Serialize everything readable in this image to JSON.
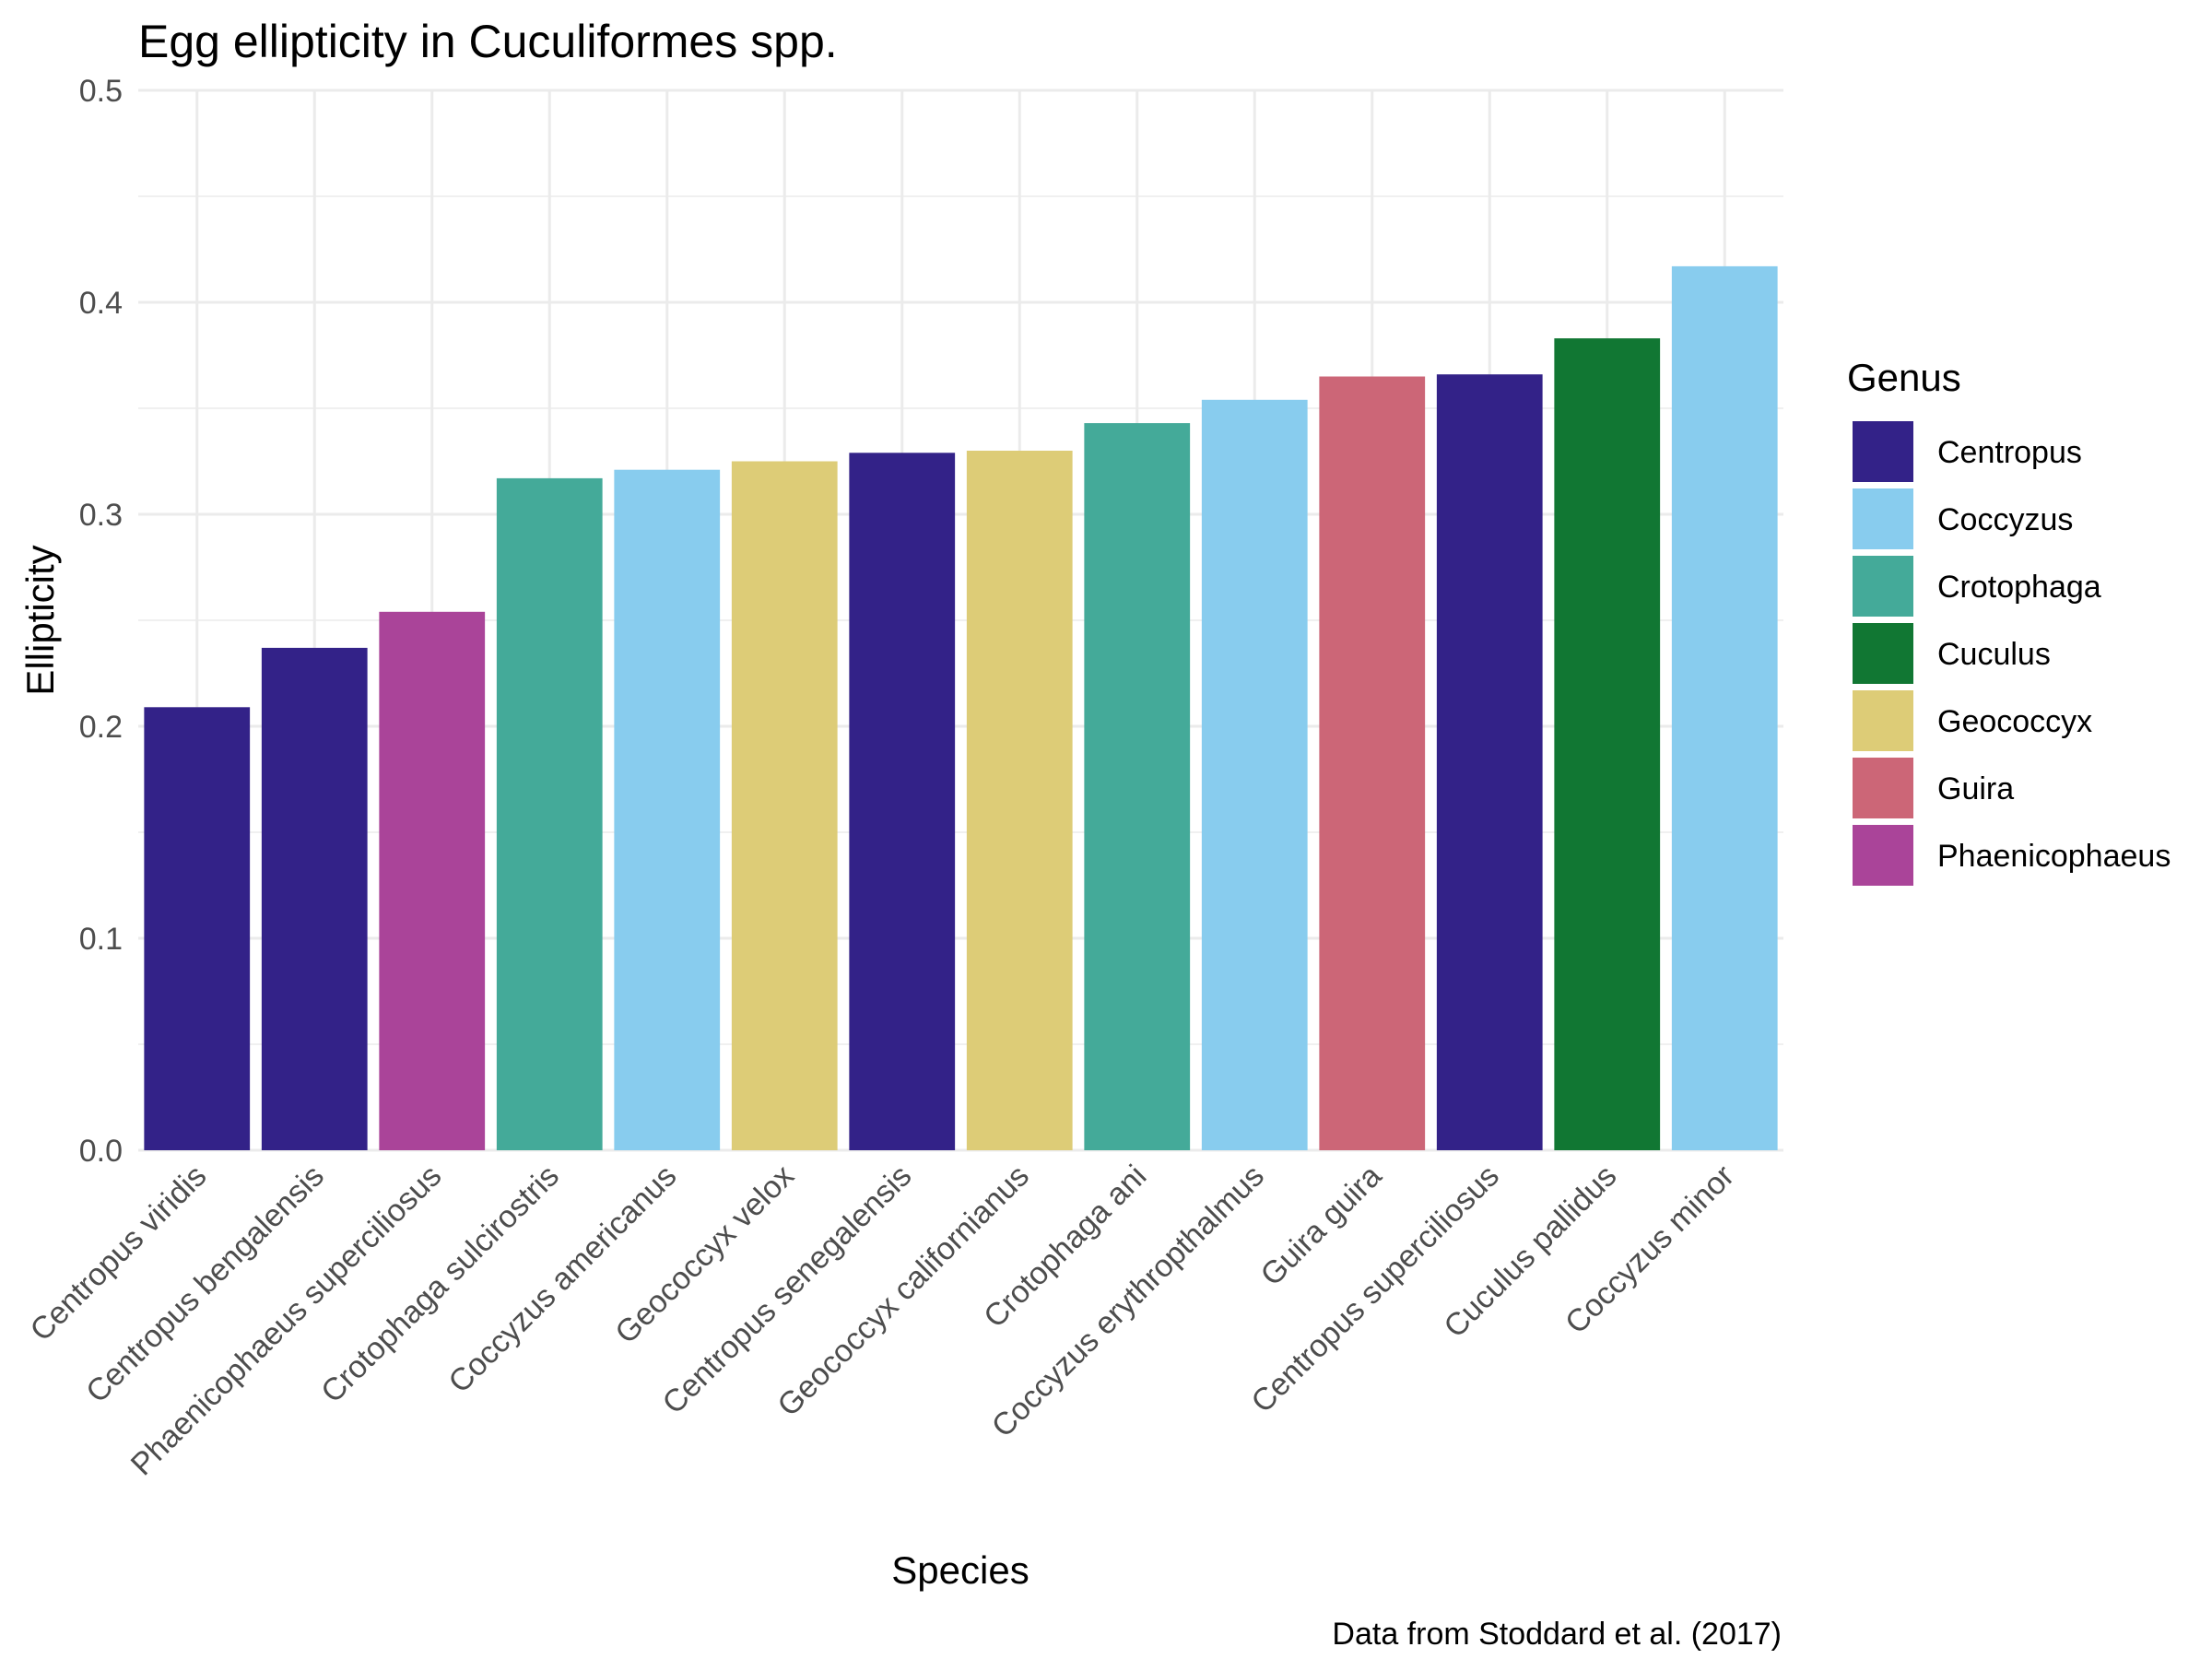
{
  "chart_data": {
    "type": "bar",
    "title": "Egg ellipticity in Cuculiformes spp.",
    "xlabel": "Species",
    "ylabel": "Ellipticity",
    "caption": "Data from Stoddard et al. (2017)",
    "ylim": [
      0,
      0.5
    ],
    "y_ticks": [
      "0.0",
      "0.1",
      "0.2",
      "0.3",
      "0.4",
      "0.5"
    ],
    "grid": true,
    "legend_title": "Genus",
    "legend_position": "right",
    "genus_colors": {
      "Centropus": "#332288",
      "Coccyzus": "#88CCEE",
      "Crotophaga": "#44AA99",
      "Cuculus": "#117733",
      "Geococcyx": "#DDCC77",
      "Guira": "#CC6677",
      "Phaenicophaeus": "#AA4499"
    },
    "legend": [
      "Centropus",
      "Coccyzus",
      "Crotophaga",
      "Cuculus",
      "Geococcyx",
      "Guira",
      "Phaenicophaeus"
    ],
    "categories": [
      "Centropus viridis",
      "Centropus bengalensis",
      "Phaenicophaeus superciliosus",
      "Crotophaga sulcirostris",
      "Coccyzus americanus",
      "Geococcyx velox",
      "Centropus senegalensis",
      "Geococcyx californianus",
      "Crotophaga ani",
      "Coccyzus erythropthalmus",
      "Guira guira",
      "Centropus superciliosus",
      "Cuculus pallidus",
      "Coccyzus minor"
    ],
    "genus": [
      "Centropus",
      "Centropus",
      "Phaenicophaeus",
      "Crotophaga",
      "Coccyzus",
      "Geococcyx",
      "Centropus",
      "Geococcyx",
      "Crotophaga",
      "Coccyzus",
      "Guira",
      "Centropus",
      "Cuculus",
      "Coccyzus"
    ],
    "values": [
      0.209,
      0.237,
      0.254,
      0.317,
      0.321,
      0.325,
      0.329,
      0.33,
      0.343,
      0.354,
      0.365,
      0.366,
      0.383,
      0.417
    ]
  }
}
